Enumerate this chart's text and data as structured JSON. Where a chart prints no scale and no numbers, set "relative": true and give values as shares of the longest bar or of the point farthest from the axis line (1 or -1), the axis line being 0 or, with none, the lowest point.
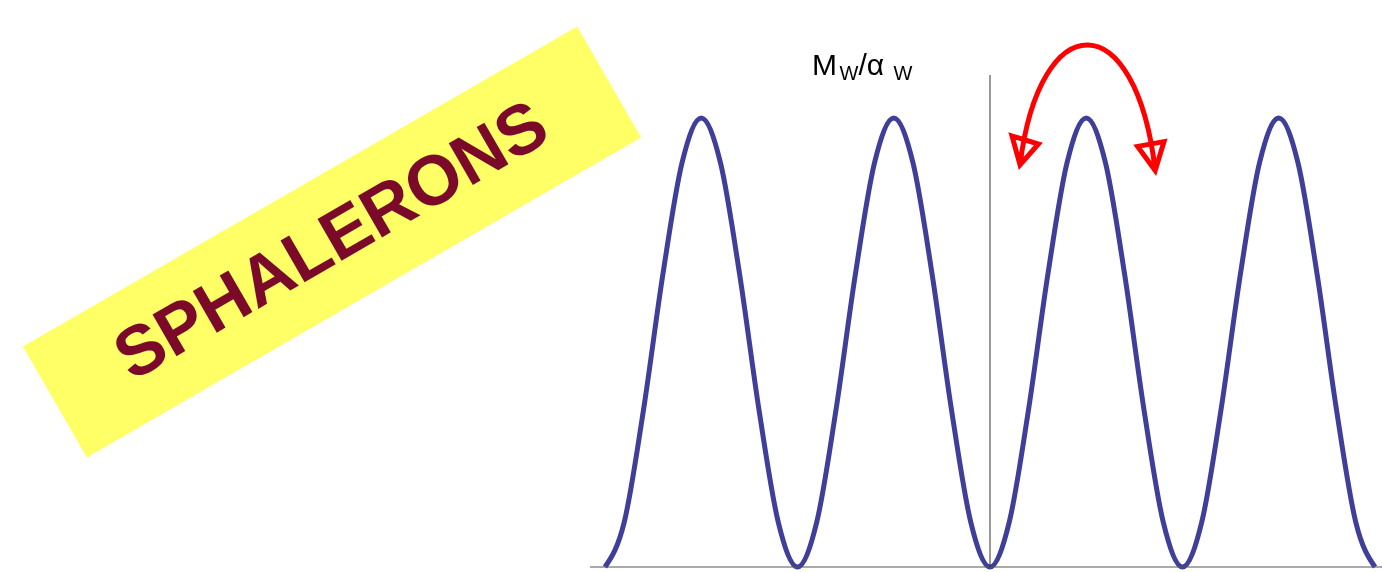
{
  "chart_data": {
    "type": "line",
    "relative": true,
    "title": "SPHALERONS",
    "ylabel": "M$_{W}$/α$_{W}$",
    "categories": [
      null,
      null,
      null,
      null,
      null,
      null,
      null,
      null,
      null,
      null,
      null,
      null,
      null,
      null,
      null,
      null,
      null,
      null,
      null,
      null,
      null,
      null,
      null,
      null,
      null,
      null,
      null,
      null,
      null,
      null,
      null,
      null,
      null,
      null,
      null,
      null,
      null,
      null,
      null,
      null,
      null
    ],
    "series": [
      {
        "color": "#3f3f9a",
        "values": [
          0,
          0.1,
          0.35,
          0.65,
          0.9,
          1,
          0.9,
          0.65,
          0.35,
          0.1,
          0,
          0.1,
          0.35,
          0.65,
          0.9,
          1,
          0.9,
          0.65,
          0.35,
          0.1,
          0,
          0.1,
          0.35,
          0.65,
          0.9,
          1,
          0.9,
          0.65,
          0.35,
          0.1,
          0,
          0.1,
          0.35,
          0.65,
          0.9,
          1,
          0.9,
          0.65,
          0.35,
          0.1,
          0
        ]
      }
    ]
  }
}
